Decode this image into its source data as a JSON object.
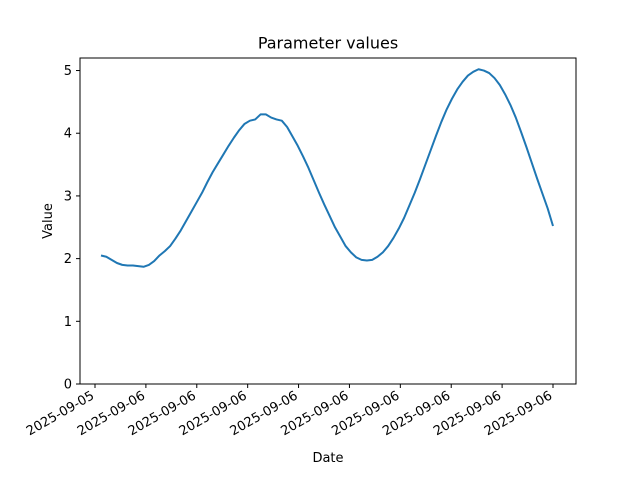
{
  "chart_data": {
    "type": "line",
    "title": "Parameter values",
    "xlabel": "Date",
    "ylabel": "Value",
    "ylim": [
      0,
      5.2
    ],
    "yticks": [
      0,
      1,
      2,
      3,
      4,
      5
    ],
    "x_tick_labels": [
      "2025-09-05",
      "2025-09-06",
      "2025-09-06",
      "2025-09-06",
      "2025-09-06",
      "2025-09-06",
      "2025-09-06",
      "2025-09-06",
      "2025-09-06",
      "2025-09-06"
    ],
    "grid": false,
    "color": "#1f77b4",
    "series": [
      {
        "values": [
          2.05,
          2.03,
          1.98,
          1.93,
          1.9,
          1.89,
          1.89,
          1.88,
          1.87,
          1.9,
          1.96,
          2.05,
          2.12,
          2.2,
          2.32,
          2.45,
          2.6,
          2.75,
          2.9,
          3.05,
          3.22,
          3.38,
          3.52,
          3.66,
          3.8,
          3.93,
          4.05,
          4.15,
          4.2,
          4.22,
          4.3,
          4.3,
          4.25,
          4.22,
          4.2,
          4.1,
          3.95,
          3.8,
          3.63,
          3.45,
          3.25,
          3.05,
          2.86,
          2.68,
          2.5,
          2.35,
          2.2,
          2.1,
          2.02,
          1.98,
          1.97,
          1.98,
          2.03,
          2.1,
          2.2,
          2.33,
          2.48,
          2.65,
          2.85,
          3.05,
          3.27,
          3.5,
          3.73,
          3.96,
          4.18,
          4.38,
          4.55,
          4.7,
          4.82,
          4.92,
          4.98,
          5.02,
          5.0,
          4.96,
          4.88,
          4.77,
          4.62,
          4.45,
          4.25,
          4.02,
          3.78,
          3.53,
          3.28,
          3.04,
          2.8,
          2.52
        ]
      }
    ]
  }
}
